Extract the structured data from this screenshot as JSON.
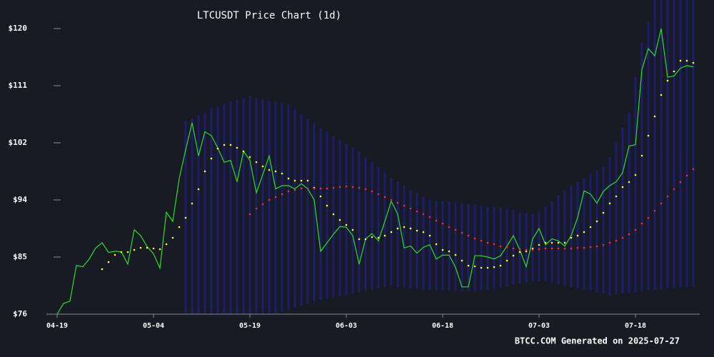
{
  "chart_data": {
    "type": "line",
    "title": "LTCUSDT Price Chart (1d)",
    "footer": "BTCC.COM Generated on 2025-07-27",
    "categories": [
      "04-19",
      null,
      null,
      null,
      null,
      null,
      null,
      null,
      null,
      null,
      null,
      null,
      null,
      null,
      null,
      "05-04",
      null,
      null,
      null,
      null,
      null,
      null,
      null,
      null,
      null,
      null,
      null,
      null,
      null,
      null,
      "05-19",
      null,
      null,
      null,
      null,
      null,
      null,
      null,
      null,
      null,
      null,
      null,
      null,
      null,
      null,
      "06-03",
      null,
      null,
      null,
      null,
      null,
      null,
      null,
      null,
      null,
      null,
      null,
      null,
      null,
      null,
      "06-18",
      null,
      null,
      null,
      null,
      null,
      null,
      null,
      null,
      null,
      null,
      null,
      null,
      null,
      null,
      "07-03",
      null,
      null,
      null,
      null,
      null,
      null,
      null,
      null,
      null,
      null,
      null,
      null,
      null,
      null,
      "07-18",
      null,
      null,
      null,
      null,
      null,
      null,
      null,
      null,
      null
    ],
    "ylim": [
      76,
      120
    ],
    "yticks": [
      {
        "value": 76,
        "label": "$76"
      },
      {
        "value": 84.8,
        "label": "$85"
      },
      {
        "value": 93.6,
        "label": "$94"
      },
      {
        "value": 102.4,
        "label": "$102"
      },
      {
        "value": 111.2,
        "label": "$111"
      },
      {
        "value": 120,
        "label": "$120"
      }
    ],
    "band": {
      "color": "#1f1f86",
      "upper": [
        null,
        null,
        null,
        null,
        null,
        null,
        null,
        null,
        null,
        null,
        null,
        null,
        null,
        null,
        null,
        null,
        null,
        null,
        null,
        null,
        105.7,
        106.1,
        106.7,
        107.1,
        107.7,
        108.0,
        108.5,
        108.7,
        109.0,
        109.3,
        109.6,
        109.3,
        109.1,
        108.9,
        108.7,
        108.6,
        108.2,
        107.6,
        106.8,
        106.1,
        105.4,
        104.6,
        104.1,
        103.4,
        102.8,
        102.2,
        101.6,
        101.1,
        100.2,
        99.4,
        98.7,
        97.9,
        97.0,
        96.4,
        95.8,
        95.1,
        94.6,
        94.0,
        93.6,
        93.5,
        93.4,
        93.3,
        93.2,
        93.1,
        93.0,
        92.8,
        92.7,
        92.6,
        92.5,
        92.4,
        92.2,
        92.0,
        91.7,
        91.6,
        91.4,
        91.8,
        92.6,
        93.4,
        94.3,
        95.0,
        95.8,
        96.4,
        97.0,
        97.6,
        98.2,
        98.8,
        100.2,
        102.5,
        104.8,
        107.1,
        112.5,
        117.8,
        121.1,
        124.4,
        124.4,
        124.4,
        124.4,
        124.4,
        124.4,
        124.4
      ],
      "lower": [
        null,
        null,
        null,
        null,
        null,
        null,
        null,
        null,
        null,
        null,
        null,
        null,
        null,
        null,
        null,
        null,
        null,
        null,
        null,
        null,
        76.0,
        75.9,
        75.8,
        75.7,
        75.6,
        75.5,
        75.4,
        75.3,
        75.2,
        75.1,
        74.9,
        75.2,
        75.5,
        75.8,
        76.1,
        76.4,
        76.7,
        77.0,
        77.3,
        77.6,
        77.9,
        78.2,
        78.4,
        78.6,
        78.8,
        79.0,
        79.2,
        79.4,
        79.6,
        79.8,
        80.0,
        80.2,
        80.4,
        80.2,
        80.1,
        80.0,
        79.9,
        79.8,
        79.7,
        79.6,
        79.6,
        79.6,
        79.5,
        79.5,
        79.5,
        79.5,
        79.6,
        79.7,
        79.9,
        80.1,
        80.3,
        80.5,
        80.7,
        80.9,
        81.1,
        81.1,
        81.0,
        80.8,
        80.6,
        80.4,
        80.2,
        80.0,
        79.8,
        79.6,
        79.4,
        79.2,
        79.0,
        79.1,
        79.2,
        79.3,
        79.4,
        79.5,
        79.6,
        79.7,
        79.8,
        79.9,
        80.0,
        80.1,
        80.2,
        80.3
      ]
    },
    "series": [
      {
        "style": "line",
        "color": "#2bdc2b",
        "values": [
          76.0,
          77.65,
          78.0,
          83.5,
          83.3,
          84.5,
          86.2,
          87.0,
          85.5,
          85.7,
          85.6,
          83.7,
          89.0,
          88.1,
          86.4,
          85.3,
          83.1,
          91.7,
          90.3,
          96.9,
          101.3,
          105.5,
          100.4,
          104.1,
          103.5,
          101.6,
          99.4,
          99.7,
          96.4,
          101.1,
          99.7,
          94.7,
          97.5,
          100.4,
          95.3,
          95.8,
          95.8,
          95.3,
          96.1,
          95.3,
          93.6,
          85.7,
          87.0,
          88.3,
          89.5,
          89.4,
          88.1,
          83.7,
          87.6,
          88.4,
          87.3,
          90.3,
          93.4,
          91.4,
          86.2,
          86.5,
          85.4,
          86.3,
          86.7,
          84.5,
          85.1,
          85.1,
          83.2,
          80.2,
          80.2,
          85.0,
          85.0,
          84.8,
          84.5,
          85.0,
          86.5,
          88.1,
          85.9,
          83.3,
          87.6,
          89.2,
          86.7,
          87.6,
          87.3,
          86.5,
          88.1,
          90.9,
          95.0,
          94.5,
          93.1,
          94.9,
          95.8,
          96.4,
          97.8,
          101.9,
          102.1,
          113.7,
          116.9,
          115.8,
          120.0,
          112.5,
          112.7,
          113.9,
          114.3,
          114.1
        ]
      },
      {
        "style": "dots",
        "color": "#ffff33",
        "values": [
          null,
          null,
          null,
          null,
          null,
          null,
          null,
          82.93,
          84.03,
          85.13,
          85.57,
          85.57,
          85.9,
          86.23,
          86.23,
          86.12,
          86.01,
          86.78,
          87.77,
          89.42,
          90.85,
          93.05,
          95.25,
          98.0,
          99.98,
          101.52,
          102.07,
          102.07,
          101.63,
          101.08,
          100.2,
          99.43,
          98.77,
          98.22,
          98.0,
          97.67,
          96.9,
          96.57,
          96.57,
          96.57,
          95.47,
          94.15,
          92.72,
          91.4,
          90.52,
          89.75,
          88.98,
          87.55,
          87.55,
          87.88,
          87.77,
          88.1,
          88.65,
          89.2,
          89.42,
          89.2,
          88.87,
          88.65,
          88.1,
          86.78,
          85.9,
          85.68,
          85.13,
          84.25,
          83.48,
          83.37,
          83.15,
          83.15,
          83.26,
          83.48,
          84.25,
          85.02,
          85.57,
          85.68,
          86.12,
          86.67,
          87.0,
          87.0,
          87.0,
          87.0,
          87.77,
          88.1,
          88.65,
          89.42,
          90.3,
          91.62,
          93.07,
          94.15,
          95.58,
          96.35,
          97.45,
          100.42,
          103.5,
          106.47,
          109.77,
          111.97,
          113.4,
          115.05,
          115.05,
          114.72
        ]
      },
      {
        "style": "dots",
        "color": "#ff2a2a",
        "values": [
          null,
          null,
          null,
          null,
          null,
          null,
          null,
          null,
          null,
          null,
          null,
          null,
          null,
          null,
          null,
          null,
          null,
          null,
          null,
          null,
          null,
          null,
          null,
          null,
          null,
          null,
          null,
          null,
          null,
          null,
          91.4,
          92.28,
          92.94,
          93.6,
          94.04,
          94.48,
          94.92,
          95.14,
          95.36,
          95.36,
          95.36,
          95.36,
          95.36,
          95.47,
          95.58,
          95.69,
          95.58,
          95.47,
          95.25,
          94.92,
          94.48,
          94.04,
          93.6,
          93.16,
          92.72,
          92.28,
          91.84,
          91.4,
          90.96,
          90.41,
          89.97,
          89.42,
          88.98,
          88.54,
          88.1,
          87.66,
          87.33,
          87.0,
          86.78,
          86.45,
          86.34,
          86.12,
          86.01,
          85.9,
          85.9,
          86.01,
          86.12,
          86.12,
          86.12,
          86.12,
          86.12,
          86.23,
          86.23,
          86.34,
          86.45,
          86.67,
          87.0,
          87.33,
          87.77,
          88.32,
          88.98,
          89.97,
          90.85,
          91.95,
          93.05,
          94.15,
          95.25,
          96.35,
          97.34,
          98.33
        ]
      }
    ]
  }
}
